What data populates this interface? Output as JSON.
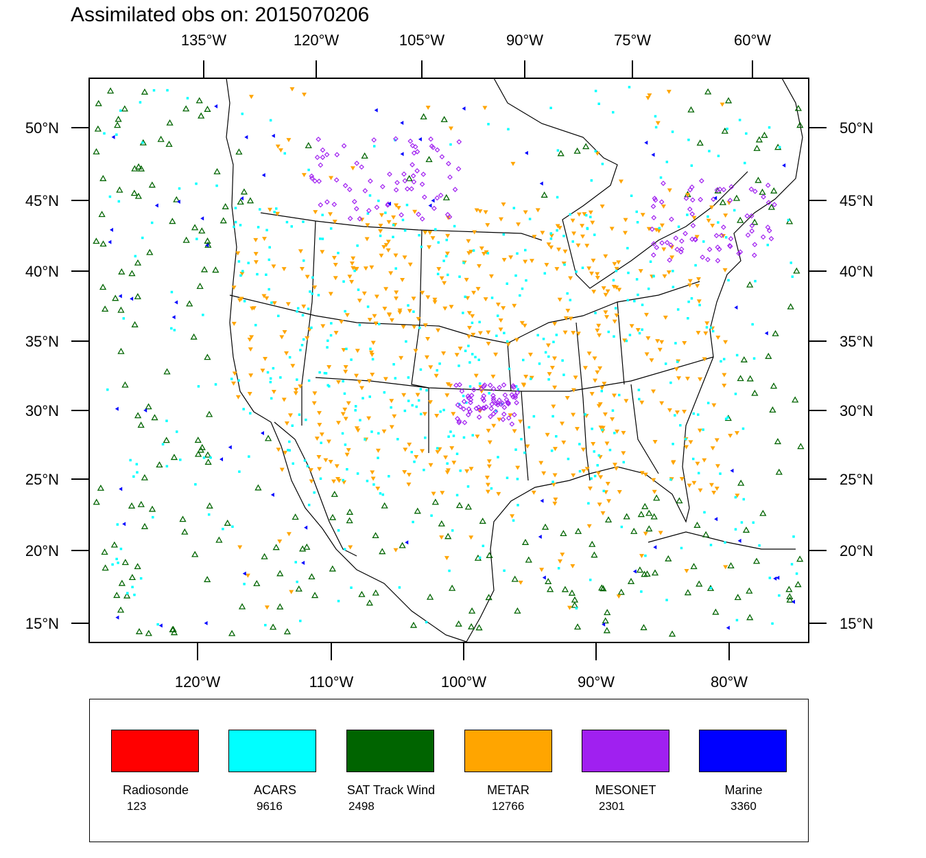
{
  "title": "Assimilated obs on: 2015070206",
  "map": {
    "top_lon_labels": [
      "135°W",
      "120°W",
      "105°W",
      "90°W",
      "75°W",
      "60°W"
    ],
    "bottom_lon_labels": [
      "120°W",
      "110°W",
      "100°W",
      "90°W",
      "80°W"
    ],
    "left_lat_labels": [
      "50°N",
      "45°N",
      "40°N",
      "35°N",
      "30°N",
      "25°N",
      "20°N",
      "15°N"
    ],
    "right_lat_labels": [
      "50°N",
      "45°N",
      "40°N",
      "35°N",
      "30°N",
      "25°N",
      "20°N",
      "15°N"
    ]
  },
  "legend": [
    {
      "name": "Radiosonde",
      "count": "123",
      "color": "#ff0000"
    },
    {
      "name": "ACARS",
      "count": "9616",
      "color": "#00ffff"
    },
    {
      "name": "SAT Track Wind",
      "count": "2498",
      "color": "#006400"
    },
    {
      "name": "METAR",
      "count": "12766",
      "color": "#ffa500"
    },
    {
      "name": "MESONET",
      "count": "2301",
      "color": "#a020f0"
    },
    {
      "name": "Marine",
      "count": "3360",
      "color": "#0000ff"
    }
  ]
}
